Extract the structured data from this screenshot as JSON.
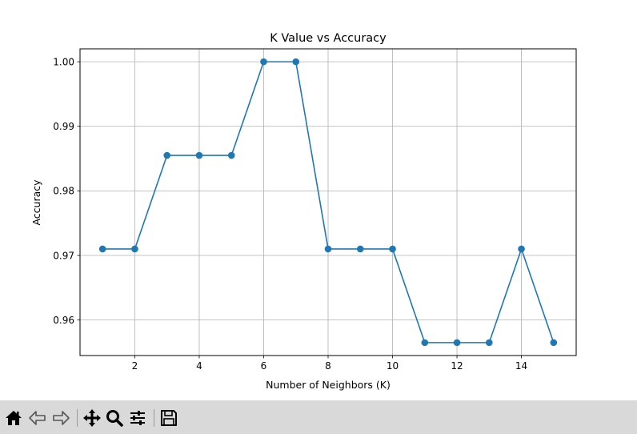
{
  "chart_data": {
    "type": "line",
    "title": "K Value vs Accuracy",
    "xlabel": "Number of Neighbors (K)",
    "ylabel": "Accuracy",
    "x": [
      1,
      2,
      3,
      4,
      5,
      6,
      7,
      8,
      9,
      10,
      11,
      12,
      13,
      14,
      15
    ],
    "series": [
      {
        "values": [
          0.971,
          0.971,
          0.9855,
          0.9855,
          0.9855,
          1.0,
          1.0,
          0.971,
          0.971,
          0.971,
          0.9565,
          0.9565,
          0.9565,
          0.971,
          0.9565
        ],
        "color": "#1f77b4",
        "marker": "circle"
      }
    ],
    "xlim": [
      0.3,
      15.7
    ],
    "ylim": [
      0.9545,
      1.002
    ],
    "xticks": [
      2,
      4,
      6,
      8,
      10,
      12,
      14
    ],
    "yticks": [
      0.96,
      0.97,
      0.98,
      0.99,
      1.0
    ],
    "xtick_labels": [
      "2",
      "4",
      "6",
      "8",
      "10",
      "12",
      "14"
    ],
    "ytick_labels": [
      "0.96",
      "0.97",
      "0.98",
      "0.99",
      "1.00"
    ],
    "grid": true
  },
  "toolbar": {
    "buttons": [
      {
        "name": "home-icon",
        "icon": "home"
      },
      {
        "name": "back-icon",
        "icon": "back"
      },
      {
        "name": "forward-icon",
        "icon": "forward"
      },
      {
        "name": "pan-icon",
        "icon": "pan"
      },
      {
        "name": "zoom-icon",
        "icon": "zoom"
      },
      {
        "name": "configure-subplots-icon",
        "icon": "subplots"
      },
      {
        "name": "save-icon",
        "icon": "save"
      }
    ]
  }
}
